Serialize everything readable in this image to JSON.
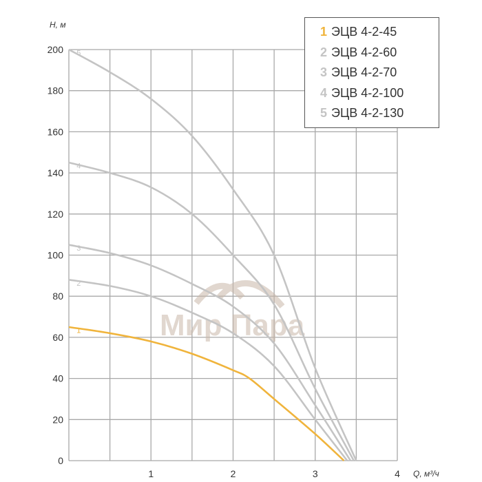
{
  "chart_data": {
    "type": "line",
    "title": "",
    "xlabel": "Q, м³/ч",
    "ylabel": "H, м",
    "xlim": [
      0,
      4
    ],
    "ylim": [
      0,
      200
    ],
    "x_ticks": [
      "1",
      "2",
      "3",
      "4"
    ],
    "y_ticks": [
      "0",
      "20",
      "40",
      "60",
      "80",
      "100",
      "120",
      "140",
      "160",
      "180",
      "200"
    ],
    "grid": true,
    "legend_position": "top-right",
    "watermark": "Мир Пара",
    "series": [
      {
        "id": "1",
        "name": "ЭЦВ 4-2-45",
        "color": "#f0b43c",
        "points": [
          [
            0,
            65
          ],
          [
            0.5,
            62
          ],
          [
            1,
            58
          ],
          [
            1.5,
            52
          ],
          [
            2,
            44
          ],
          [
            2.2,
            40
          ],
          [
            2.5,
            30
          ],
          [
            3,
            13
          ],
          [
            3.35,
            0
          ]
        ]
      },
      {
        "id": "2",
        "name": "ЭЦВ 4-2-60",
        "color": "#c4c4c4",
        "points": [
          [
            0,
            88
          ],
          [
            0.5,
            85
          ],
          [
            1,
            80
          ],
          [
            1.5,
            72
          ],
          [
            2,
            62
          ],
          [
            2.5,
            46
          ],
          [
            3,
            20
          ],
          [
            3.39,
            0
          ]
        ]
      },
      {
        "id": "3",
        "name": "ЭЦВ 4-2-70",
        "color": "#c4c4c4",
        "points": [
          [
            0,
            105
          ],
          [
            0.5,
            101
          ],
          [
            1,
            95
          ],
          [
            1.5,
            86
          ],
          [
            2,
            75
          ],
          [
            2.5,
            57
          ],
          [
            3,
            27
          ],
          [
            3.43,
            0
          ]
        ]
      },
      {
        "id": "4",
        "name": "ЭЦВ 4-2-100",
        "color": "#c4c4c4",
        "points": [
          [
            0,
            145
          ],
          [
            0.5,
            140
          ],
          [
            1,
            133
          ],
          [
            1.5,
            120
          ],
          [
            2,
            100
          ],
          [
            2.5,
            76
          ],
          [
            3,
            35
          ],
          [
            3.47,
            0
          ]
        ]
      },
      {
        "id": "5",
        "name": "ЭЦВ 4-2-130",
        "color": "#c4c4c4",
        "points": [
          [
            0,
            200
          ],
          [
            0.5,
            189
          ],
          [
            1,
            176
          ],
          [
            1.5,
            158
          ],
          [
            2,
            132
          ],
          [
            2.5,
            100
          ],
          [
            3,
            45
          ],
          [
            3.5,
            0
          ]
        ]
      }
    ]
  }
}
